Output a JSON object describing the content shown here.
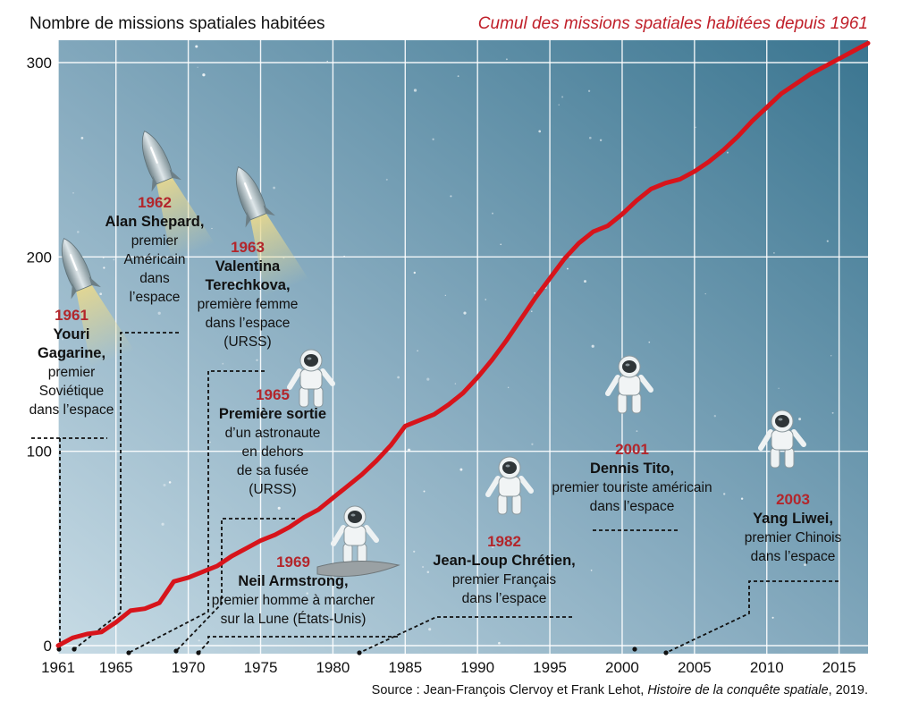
{
  "chart_data": {
    "type": "line",
    "ylabel": "Nombre de missions spatiales habitées",
    "title": "Cumul des missions spatiales habitées depuis 1961",
    "source_prefix": "Source : Jean-François Clervoy et Frank Lehot, ",
    "source_title": "Histoire de la conquête spatiale",
    "source_suffix": ", 2019.",
    "xlim": [
      1961,
      2017
    ],
    "ylim": [
      0,
      310
    ],
    "x_ticks": [
      1961,
      1965,
      1970,
      1975,
      1980,
      1985,
      1990,
      1995,
      2000,
      2005,
      2010,
      2015
    ],
    "y_ticks": [
      0,
      100,
      200,
      300
    ],
    "grid": true,
    "line_color": "#d7141b",
    "series": [
      {
        "x": [
          1961,
          1962,
          1963,
          1964,
          1965,
          1966,
          1967,
          1968,
          1969,
          1970,
          1971,
          1972,
          1973,
          1974,
          1975,
          1976,
          1977,
          1978,
          1979,
          1980,
          1981,
          1982,
          1983,
          1984,
          1985,
          1986,
          1987,
          1988,
          1989,
          1990,
          1991,
          1992,
          1993,
          1994,
          1995,
          1996,
          1997,
          1998,
          1999,
          2000,
          2001,
          2002,
          2003,
          2004,
          2005,
          2006,
          2007,
          2008,
          2009,
          2010,
          2011,
          2012,
          2013,
          2014,
          2015,
          2016,
          2017
        ],
        "y": [
          0,
          4,
          6,
          7,
          12,
          18,
          19,
          22,
          33,
          35,
          38,
          41,
          46,
          50,
          54,
          57,
          61,
          66,
          70,
          76,
          82,
          88,
          95,
          103,
          113,
          116,
          119,
          124,
          130,
          138,
          147,
          157,
          168,
          179,
          189,
          199,
          207,
          213,
          216,
          222,
          229,
          235,
          238,
          240,
          244,
          249,
          255,
          262,
          270,
          277,
          284,
          289,
          294,
          298,
          302,
          306,
          310
        ]
      }
    ],
    "annotations": [
      {
        "year": "1961",
        "bold": [
          "Youri",
          "Gagarine,"
        ],
        "text": [
          "premier",
          "Soviétique",
          "dans l’espace"
        ],
        "icon": "rocket-icon"
      },
      {
        "year": "1962",
        "bold": [
          "Alan Shepard,"
        ],
        "text": [
          "premier",
          "Américain",
          "dans",
          "l’espace"
        ],
        "icon": "rocket-icon"
      },
      {
        "year": "1963",
        "bold": [
          "Valentina",
          "Terechkova,"
        ],
        "text": [
          "première femme",
          "dans l’espace",
          "(URSS)"
        ],
        "icon": "rocket-icon"
      },
      {
        "year": "1965",
        "bold": [
          "Première sortie"
        ],
        "text": [
          "d’un astronaute",
          "en dehors",
          "de sa fusée",
          "(URSS)"
        ],
        "icon": "astronaut-icon"
      },
      {
        "year": "1969",
        "bold": [
          "Neil Armstrong,"
        ],
        "text": [
          "premier homme à marcher",
          "sur la Lune (États-Unis)"
        ],
        "icon": "astronaut-icon"
      },
      {
        "year": "1982",
        "bold": [
          "Jean-Loup Chrétien,"
        ],
        "text": [
          "premier Français",
          "dans l’espace"
        ],
        "icon": "astronaut-icon"
      },
      {
        "year": "2001",
        "bold": [
          "Dennis Tito,"
        ],
        "text": [
          "premier touriste américain",
          "dans l’espace"
        ],
        "icon": "astronaut-icon"
      },
      {
        "year": "2003",
        "bold": [
          "Yang Liwei,"
        ],
        "text": [
          "premier Chinois",
          "dans l’espace"
        ],
        "icon": "astronaut-icon"
      }
    ]
  }
}
